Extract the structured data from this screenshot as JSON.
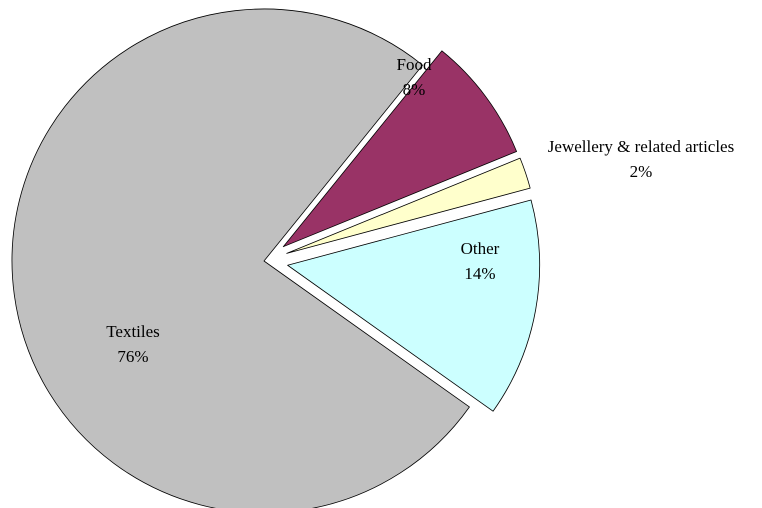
{
  "chart_data": {
    "type": "pie",
    "title": "",
    "slices": [
      {
        "name": "Textiles",
        "value": 76,
        "pct_label": "76%",
        "color": "#c0c0c0"
      },
      {
        "name": "Food",
        "value": 8,
        "pct_label": "8%",
        "color": "#993366"
      },
      {
        "name": "Jewellery & related articles",
        "value": 2,
        "pct_label": "2%",
        "color": "#ffffcc"
      },
      {
        "name": "Other",
        "value": 14,
        "pct_label": "14%",
        "color": "#ccffff"
      }
    ],
    "exploded_slices": [
      "Food",
      "Jewellery & related articles",
      "Other"
    ],
    "legend": "none"
  }
}
